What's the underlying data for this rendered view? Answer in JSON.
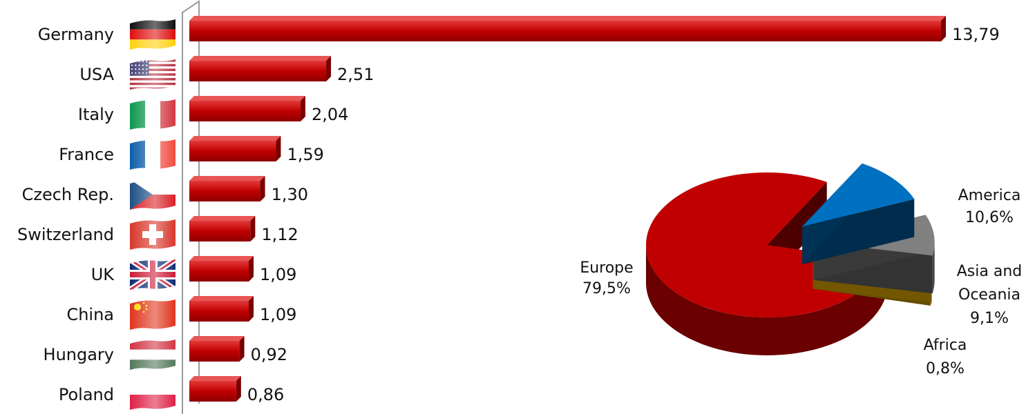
{
  "chart_data": [
    {
      "type": "bar",
      "orientation": "horizontal",
      "categories": [
        "Germany",
        "USA",
        "Italy",
        "France",
        "Czech Rep.",
        "Switzerland",
        "UK",
        "China",
        "Hungary",
        "Poland"
      ],
      "values": [
        13.79,
        2.51,
        2.04,
        1.59,
        1.3,
        1.12,
        1.09,
        1.09,
        0.92,
        0.86
      ],
      "value_labels": [
        "13,79",
        "2,51",
        "2,04",
        "1,59",
        "1,30",
        "1,12",
        "1,09",
        "1,09",
        "0,92",
        "0,86"
      ],
      "flags": [
        "germany-flag-icon",
        "usa-flag-icon",
        "italy-flag-icon",
        "france-flag-icon",
        "czech-flag-icon",
        "switzerland-flag-icon",
        "uk-flag-icon",
        "china-flag-icon",
        "hungary-flag-icon",
        "poland-flag-icon"
      ],
      "bar_color": "#c00000",
      "grid": false,
      "legend": "none"
    },
    {
      "type": "pie",
      "slices": [
        {
          "name": "Europe",
          "value": 79.5,
          "label": "79,5%",
          "color": "#c00000"
        },
        {
          "name": "America",
          "value": 10.6,
          "label": "10,6%",
          "color": "#0070c0"
        },
        {
          "name": "Asia and Oceania",
          "value": 9.1,
          "label": "9,1%",
          "color": "#808080"
        },
        {
          "name": "Africa",
          "value": 0.8,
          "label": "0,8%",
          "color": "#ffc000"
        }
      ],
      "legend": "none"
    }
  ]
}
